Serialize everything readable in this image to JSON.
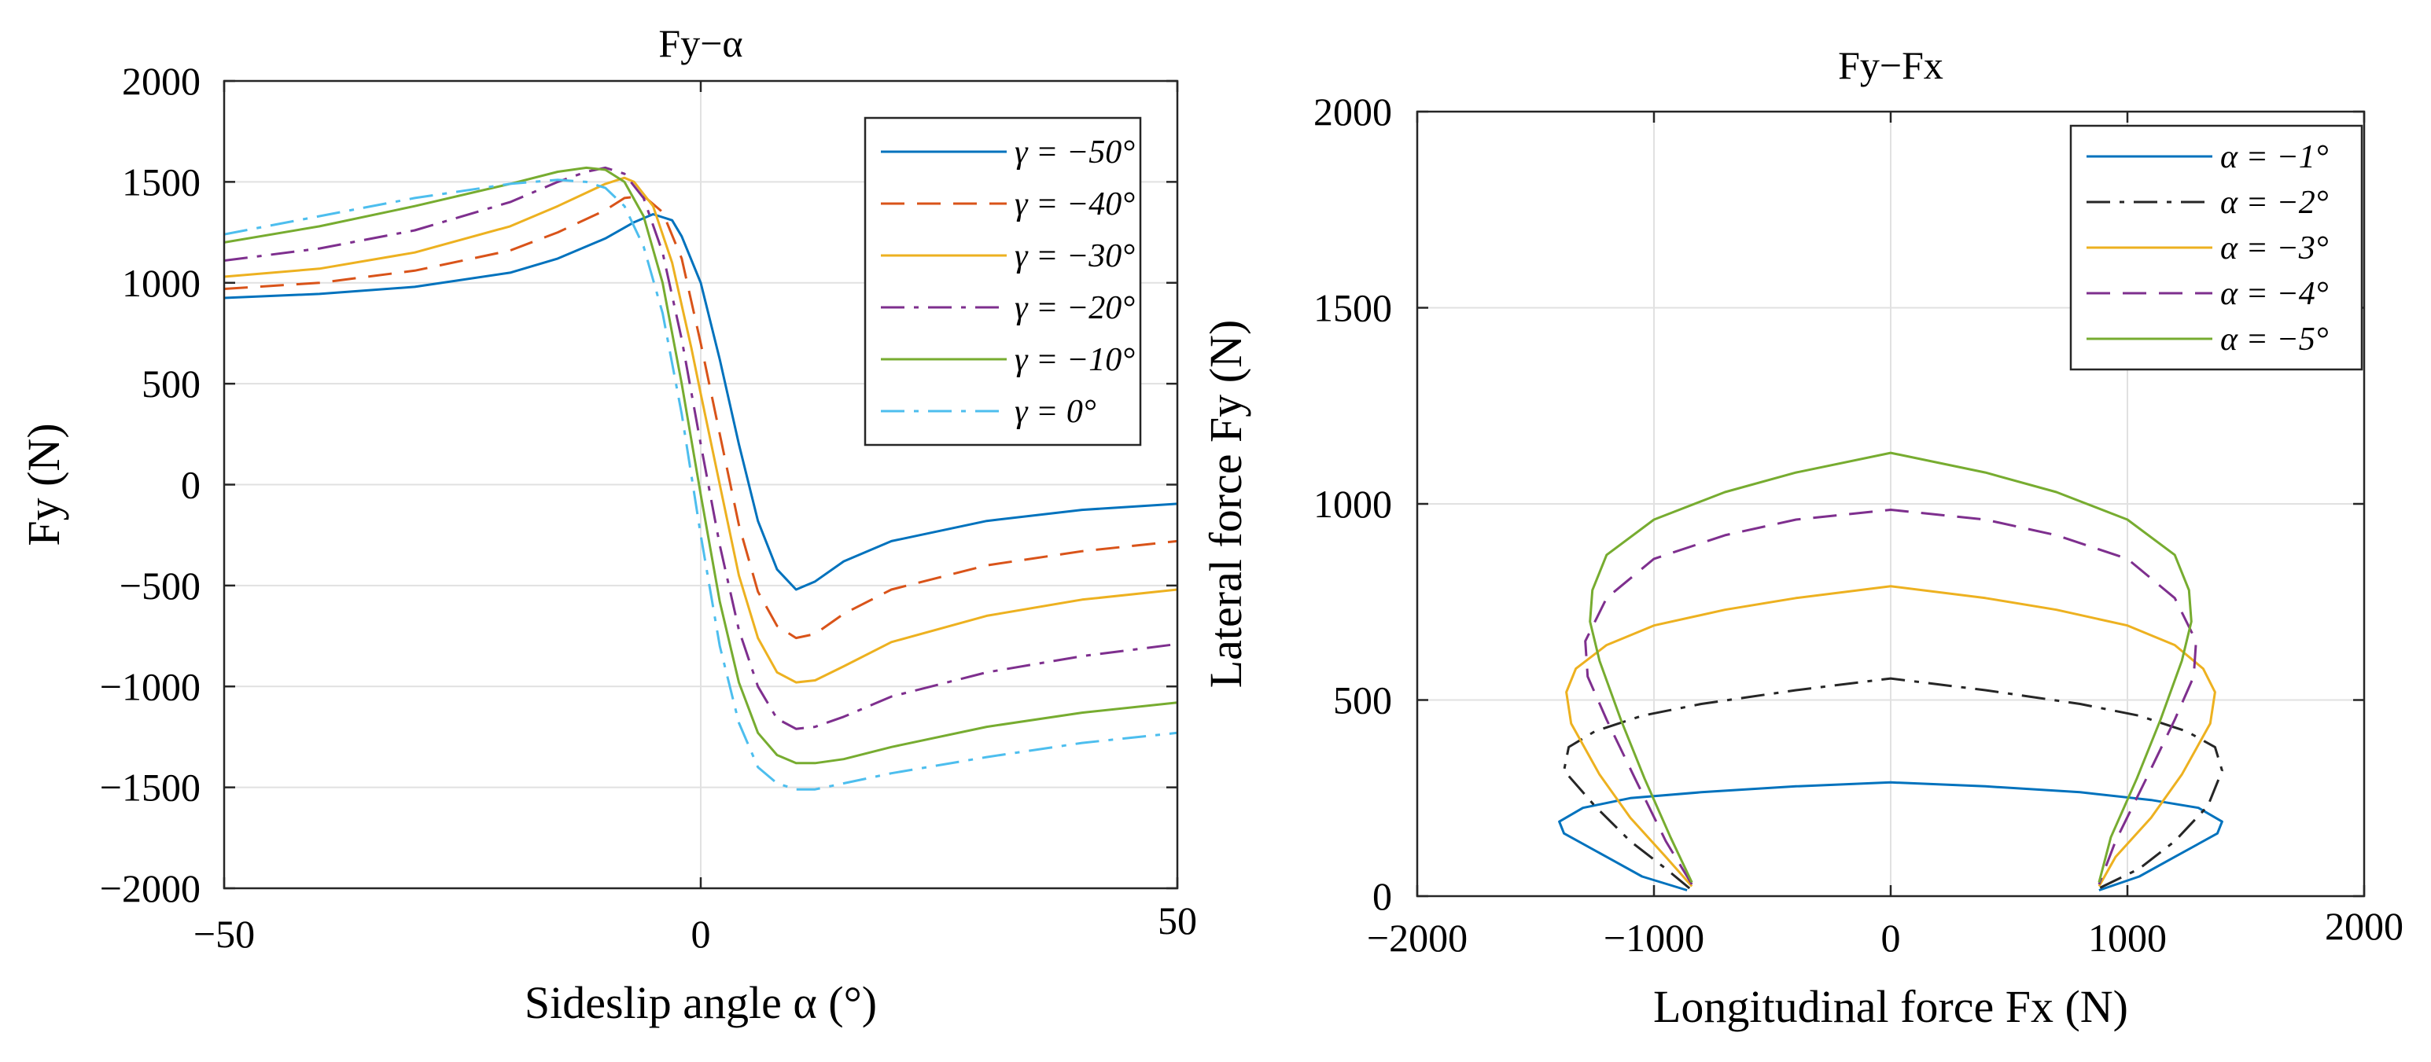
{
  "chart_data": [
    {
      "type": "line",
      "title": "Fy−α",
      "xlabel": "Sideslip angle α (°)",
      "ylabel": "Fy (N)",
      "xlim": [
        -50,
        50
      ],
      "ylim": [
        -2000,
        2000
      ],
      "xticks": [
        -50,
        0,
        50
      ],
      "xtick_labels": [
        "−50",
        "0",
        "50"
      ],
      "yticks": [
        2000,
        1500,
        1000,
        500,
        0,
        -500,
        -1000,
        -1500,
        -2000
      ],
      "ytick_labels": [
        "2000",
        "1500",
        "1000",
        "500",
        "0",
        "−500",
        "−1000",
        "−1500",
        "−2000"
      ],
      "grid": true,
      "legend_position": "top-right",
      "series": [
        {
          "name": "γ = −50°",
          "color": "#0072BD",
          "dash": "solid",
          "x": [
            -50,
            -40,
            -30,
            -20,
            -15,
            -10,
            -7,
            -5,
            -3,
            -2,
            0,
            2,
            4,
            6,
            8,
            10,
            12,
            15,
            20,
            30,
            40,
            50
          ],
          "y": [
            925,
            945,
            980,
            1050,
            1120,
            1220,
            1300,
            1340,
            1310,
            1230,
            1000,
            620,
            200,
            -180,
            -420,
            -520,
            -480,
            -380,
            -280,
            -180,
            -125,
            -95
          ]
        },
        {
          "name": "γ = −40°",
          "color": "#D95319",
          "dash": "dashed",
          "x": [
            -50,
            -40,
            -30,
            -20,
            -15,
            -10,
            -8,
            -6,
            -4,
            -2,
            0,
            2,
            4,
            6,
            8,
            10,
            12,
            15,
            20,
            30,
            40,
            50
          ],
          "y": [
            970,
            1000,
            1060,
            1160,
            1250,
            1360,
            1420,
            1430,
            1350,
            1120,
            700,
            250,
            -200,
            -530,
            -700,
            -760,
            -740,
            -640,
            -520,
            -400,
            -330,
            -280
          ]
        },
        {
          "name": "γ = −30°",
          "color": "#EDB120",
          "dash": "solid",
          "x": [
            -50,
            -40,
            -30,
            -20,
            -15,
            -10,
            -8,
            -7,
            -5,
            -3,
            -1,
            0,
            2,
            4,
            6,
            8,
            10,
            12,
            15,
            20,
            30,
            40,
            50
          ],
          "y": [
            1030,
            1070,
            1150,
            1280,
            1380,
            1490,
            1520,
            1500,
            1380,
            1100,
            680,
            450,
            0,
            -450,
            -760,
            -930,
            -980,
            -970,
            -900,
            -780,
            -650,
            -570,
            -520
          ]
        },
        {
          "name": "γ = −20°",
          "color": "#7E2F8E",
          "dash": "dashdot",
          "x": [
            -50,
            -40,
            -30,
            -20,
            -15,
            -12,
            -10,
            -8,
            -6,
            -4,
            -2,
            0,
            2,
            4,
            6,
            8,
            10,
            12,
            15,
            20,
            30,
            40,
            50
          ],
          "y": [
            1110,
            1170,
            1260,
            1400,
            1500,
            1550,
            1570,
            1540,
            1420,
            1150,
            720,
            200,
            -300,
            -720,
            -1000,
            -1160,
            -1210,
            -1200,
            -1150,
            -1050,
            -930,
            -850,
            -790
          ]
        },
        {
          "name": "γ = −10°",
          "color": "#77AC30",
          "dash": "solid",
          "x": [
            -50,
            -40,
            -30,
            -20,
            -15,
            -12,
            -10,
            -8,
            -6,
            -4,
            -2,
            0,
            2,
            4,
            6,
            8,
            10,
            12,
            15,
            20,
            30,
            40,
            50
          ],
          "y": [
            1200,
            1280,
            1380,
            1490,
            1550,
            1570,
            1560,
            1500,
            1330,
            1000,
            500,
            -50,
            -580,
            -980,
            -1230,
            -1340,
            -1380,
            -1380,
            -1360,
            -1300,
            -1200,
            -1130,
            -1080
          ]
        },
        {
          "name": "γ = 0°",
          "color": "#4DBEEE",
          "dash": "dashdot",
          "x": [
            -50,
            -40,
            -30,
            -20,
            -15,
            -12,
            -10,
            -8,
            -6,
            -4,
            -2,
            0,
            2,
            4,
            6,
            8,
            10,
            12,
            15,
            20,
            30,
            40,
            50
          ],
          "y": [
            1240,
            1330,
            1420,
            1490,
            1510,
            1500,
            1470,
            1380,
            1180,
            850,
            350,
            -250,
            -800,
            -1180,
            -1400,
            -1480,
            -1510,
            -1510,
            -1480,
            -1430,
            -1350,
            -1280,
            -1230
          ]
        }
      ]
    },
    {
      "type": "line",
      "title": "Fy−Fx",
      "xlabel": "Longitudinal force Fx (N)",
      "ylabel": "Lateral force Fy (N)",
      "xlim": [
        -2000,
        2000
      ],
      "ylim": [
        0,
        2000
      ],
      "xticks": [
        -2000,
        -1000,
        0,
        1000,
        2000
      ],
      "xtick_labels": [
        "−2000",
        "−1000",
        "0",
        "1000",
        "2000"
      ],
      "yticks": [
        2000,
        1500,
        1000,
        500,
        0
      ],
      "ytick_labels": [
        "2000",
        "1500",
        "1000",
        "500",
        "0"
      ],
      "grid": true,
      "legend_position": "top-right",
      "series": [
        {
          "name": "α = −1°",
          "color": "#0072BD",
          "dash": "solid",
          "x": [
            -860,
            -1050,
            -1200,
            -1380,
            -1400,
            -1300,
            -1100,
            -800,
            -400,
            0,
            400,
            800,
            1100,
            1300,
            1400,
            1380,
            1200,
            1050,
            880
          ],
          "y": [
            15,
            50,
            100,
            160,
            190,
            225,
            250,
            265,
            280,
            290,
            280,
            265,
            245,
            225,
            190,
            160,
            100,
            50,
            15
          ]
        },
        {
          "name": "α = −2°",
          "color": "#262626",
          "dash": "dashdot",
          "x": [
            -850,
            -950,
            -1100,
            -1250,
            -1380,
            -1360,
            -1250,
            -1050,
            -800,
            -400,
            0,
            400,
            800,
            1050,
            1250,
            1370,
            1400,
            1340,
            1200,
            1050,
            880
          ],
          "y": [
            20,
            70,
            140,
            230,
            320,
            380,
            420,
            460,
            490,
            525,
            555,
            525,
            490,
            460,
            420,
            380,
            320,
            230,
            140,
            70,
            20
          ]
        },
        {
          "name": "α = −3°",
          "color": "#EDB120",
          "dash": "solid",
          "x": [
            -840,
            -950,
            -1100,
            -1230,
            -1350,
            -1370,
            -1330,
            -1200,
            -1000,
            -700,
            -400,
            0,
            400,
            700,
            1000,
            1200,
            1320,
            1370,
            1350,
            1230,
            1100,
            950,
            880
          ],
          "y": [
            25,
            100,
            200,
            310,
            440,
            520,
            580,
            640,
            690,
            730,
            760,
            790,
            760,
            730,
            690,
            640,
            580,
            520,
            440,
            310,
            200,
            100,
            25
          ]
        },
        {
          "name": "α = −4°",
          "color": "#7E2F8E",
          "dash": "dashed",
          "x": [
            -840,
            -950,
            -1080,
            -1200,
            -1280,
            -1290,
            -1200,
            -1000,
            -700,
            -400,
            0,
            400,
            700,
            1000,
            1200,
            1290,
            1280,
            1200,
            1080,
            950,
            880
          ],
          "y": [
            30,
            140,
            300,
            450,
            560,
            650,
            760,
            860,
            920,
            960,
            985,
            960,
            920,
            860,
            760,
            650,
            560,
            450,
            300,
            140,
            30
          ]
        },
        {
          "name": "α = −5°",
          "color": "#77AC30",
          "dash": "solid",
          "x": [
            -840,
            -930,
            -1040,
            -1140,
            -1230,
            -1270,
            -1260,
            -1200,
            -1000,
            -700,
            -400,
            0,
            400,
            700,
            1000,
            1200,
            1260,
            1270,
            1230,
            1140,
            1040,
            930,
            880
          ],
          "y": [
            35,
            150,
            300,
            450,
            600,
            700,
            780,
            870,
            960,
            1030,
            1080,
            1130,
            1080,
            1030,
            960,
            870,
            780,
            700,
            600,
            450,
            300,
            150,
            35
          ]
        }
      ]
    }
  ]
}
